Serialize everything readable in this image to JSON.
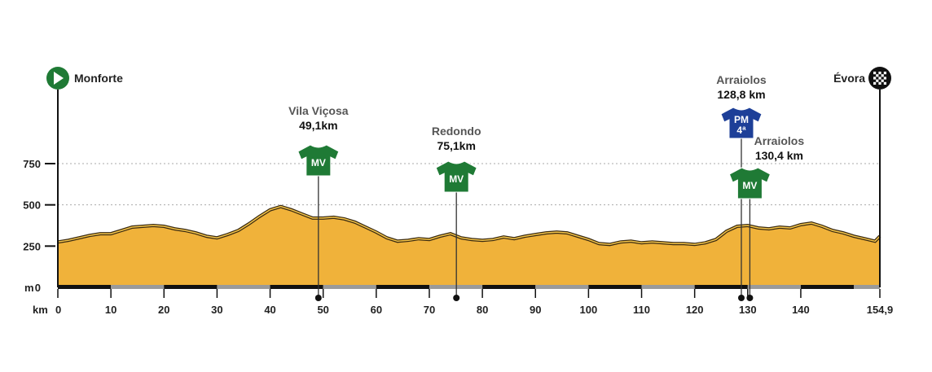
{
  "start": {
    "name": "Monforte"
  },
  "finish": {
    "name": "Évora"
  },
  "axis": {
    "y_unit": "m",
    "x_unit": "km",
    "y_ticks": [
      0,
      250,
      500,
      750
    ],
    "y_tick_labels": [
      "0",
      "250",
      "500",
      "750"
    ],
    "x_ticks": [
      0,
      10,
      20,
      30,
      40,
      50,
      60,
      70,
      80,
      90,
      100,
      110,
      120,
      130,
      140,
      154.9
    ],
    "x_tick_labels": [
      "0",
      "10",
      "20",
      "30",
      "40",
      "50",
      "60",
      "70",
      "80",
      "90",
      "100",
      "110",
      "120",
      "130",
      "140",
      "154,9"
    ]
  },
  "colors": {
    "fill": "#f0b23a",
    "line": "#3a2a10",
    "mv": "#1f7a35",
    "pm": "#1d3f98",
    "grid": "#aaaaaa"
  },
  "markers": [
    {
      "name": "Vila Viçosa",
      "distance_label": "49,1km",
      "km": 49.1,
      "jersey": "MV",
      "color": "mv"
    },
    {
      "name": "Redondo",
      "distance_label": "75,1km",
      "km": 75.1,
      "jersey": "MV",
      "color": "mv"
    },
    {
      "name": "Arraiolos",
      "distance_label": "128,8 km",
      "km": 128.8,
      "jersey": "PM",
      "jersey_sub": "4ª",
      "color": "pm"
    },
    {
      "name": "Arraiolos",
      "distance_label": "130,4 km",
      "km": 130.4,
      "jersey": "MV",
      "color": "mv"
    }
  ],
  "chart_data": {
    "type": "area",
    "xlabel": "km",
    "ylabel": "m",
    "xlim": [
      0,
      154.9
    ],
    "ylim": [
      0,
      750
    ],
    "grid": true,
    "x": [
      0,
      2,
      4,
      6,
      8,
      10,
      12,
      14,
      16,
      18,
      20,
      22,
      24,
      26,
      28,
      30,
      32,
      34,
      36,
      38,
      40,
      42,
      44,
      46,
      48,
      50,
      52,
      54,
      56,
      58,
      60,
      62,
      64,
      66,
      68,
      70,
      72,
      74,
      76,
      78,
      80,
      82,
      84,
      86,
      88,
      90,
      92,
      94,
      96,
      98,
      100,
      102,
      104,
      106,
      108,
      110,
      112,
      114,
      116,
      118,
      120,
      122,
      124,
      126,
      128,
      130,
      132,
      134,
      136,
      138,
      140,
      142,
      144,
      146,
      148,
      150,
      152,
      154,
      154.9
    ],
    "y": [
      275,
      285,
      300,
      315,
      325,
      325,
      345,
      365,
      370,
      375,
      370,
      355,
      345,
      330,
      310,
      300,
      320,
      345,
      385,
      430,
      470,
      490,
      470,
      445,
      420,
      420,
      425,
      415,
      395,
      365,
      335,
      300,
      280,
      285,
      295,
      290,
      310,
      325,
      300,
      290,
      285,
      290,
      305,
      295,
      310,
      320,
      330,
      335,
      330,
      310,
      290,
      265,
      260,
      275,
      280,
      270,
      275,
      270,
      265,
      265,
      260,
      270,
      290,
      340,
      370,
      375,
      360,
      355,
      365,
      360,
      380,
      390,
      370,
      345,
      330,
      310,
      295,
      280,
      310
    ]
  }
}
